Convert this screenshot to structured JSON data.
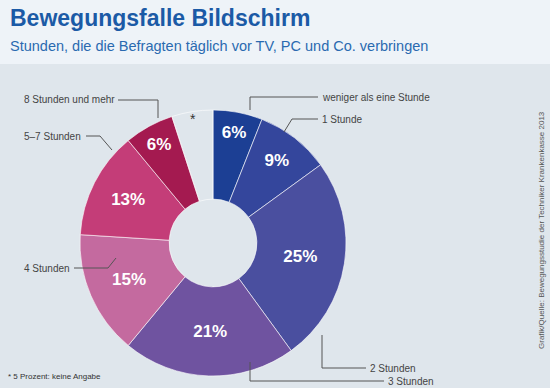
{
  "chart_data": {
    "type": "pie",
    "title": "Bewegungsfalle Bildschirm",
    "subtitle": "Stunden, die die Befragten täglich vor TV, PC und Co. verbringen",
    "categories": [
      "weniger als eine Stunde",
      "1 Stunde",
      "2 Stunden",
      "3 Stunden",
      "4 Stunden",
      "5–7 Stunden",
      "8 Stunden und mehr",
      "*"
    ],
    "values": [
      6,
      9,
      25,
      21,
      15,
      13,
      6,
      5
    ],
    "value_labels": [
      "6%",
      "9%",
      "25%",
      "21%",
      "15%",
      "13%",
      "6%",
      null
    ],
    "colors": [
      "#1c3f94",
      "#34469c",
      "#4a4f9f",
      "#6f53a0",
      "#c46a9f",
      "#c43d78",
      "#a41a50",
      "rgba(0,0,0,0)"
    ],
    "data_labels": true,
    "annotations": [
      "* 5 Prozent: keine Angabe",
      "Grafik/Quelle: Bewegungsstudie der Techniker Krankenkasse 2013"
    ]
  }
}
